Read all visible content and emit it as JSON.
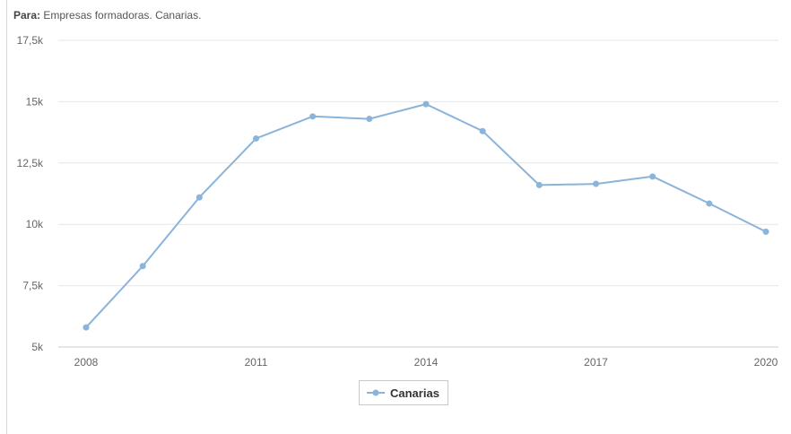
{
  "header": {
    "prefix": "Para:",
    "text": "Empresas formadoras. Canarias."
  },
  "colors": {
    "series": "#8ab4da",
    "grid": "#e6e6e6",
    "axis": "#cccccc"
  },
  "chart_data": {
    "type": "line",
    "title": "",
    "xlabel": "",
    "ylabel": "",
    "x": [
      2008,
      2009,
      2010,
      2011,
      2012,
      2013,
      2014,
      2015,
      2016,
      2017,
      2018,
      2019,
      2020
    ],
    "series": [
      {
        "name": "Canarias",
        "values": [
          5800,
          8300,
          11100,
          13500,
          14400,
          14300,
          14900,
          13800,
          11600,
          11650,
          11950,
          10850,
          9700
        ]
      }
    ],
    "ylim": [
      5000,
      17500
    ],
    "y_ticks": [
      5000,
      7500,
      10000,
      12500,
      15000,
      17500
    ],
    "y_tick_labels": [
      "5k",
      "7,5k",
      "10k",
      "12,5k",
      "15k",
      "17,5k"
    ],
    "x_ticks": [
      2008,
      2011,
      2014,
      2017,
      2020
    ],
    "x_tick_labels": [
      "2008",
      "2011",
      "2014",
      "2017",
      "2020"
    ],
    "grid": true,
    "legend": "bottom-center"
  }
}
